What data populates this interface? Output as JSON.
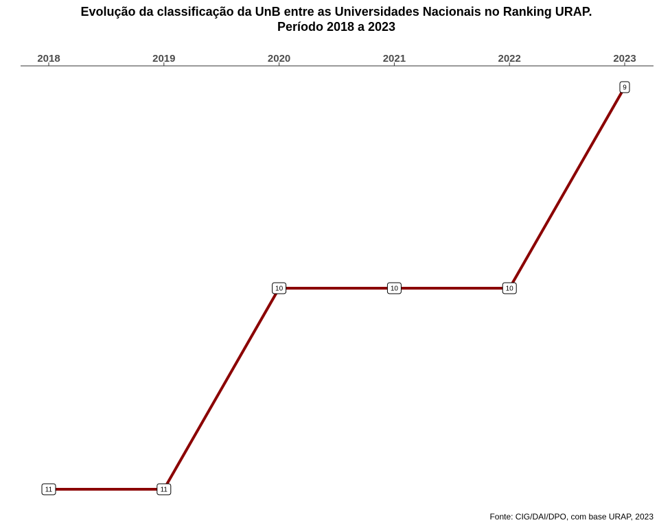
{
  "chart_data": {
    "type": "line",
    "title_line1": "Evolução da classificação da UnB entre as Universidades Nacionais no Ranking URAP.",
    "title_line2": "Período 2018 a 2023",
    "x": [
      "2018",
      "2019",
      "2020",
      "2021",
      "2022",
      "2023"
    ],
    "series": [
      {
        "values": [
          11,
          11,
          10,
          10,
          10,
          9
        ],
        "color": "#8b0000"
      }
    ],
    "y_reversed": true,
    "ylim": [
      9,
      11
    ],
    "x_axis_position": "top",
    "grid": false,
    "caption": "Fonte: CIG/DAI/DPO, com base URAP, 2023"
  }
}
